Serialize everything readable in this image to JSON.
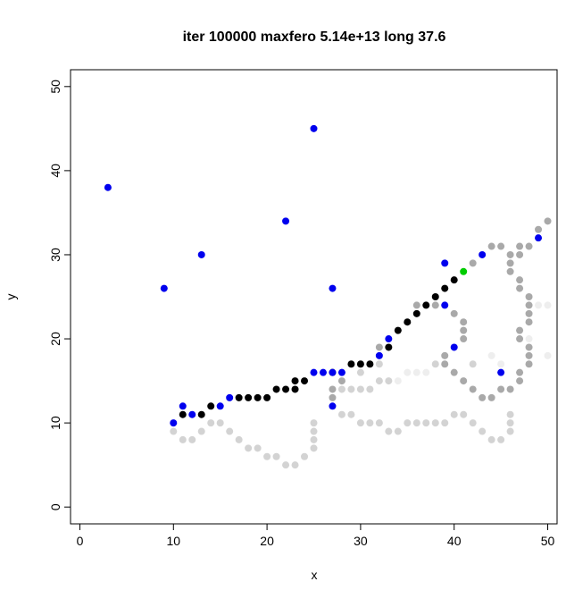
{
  "chart_data": {
    "type": "scatter",
    "title": "iter 100000 maxfero 5.14e+13 long 37.6",
    "x_label": "x",
    "y_label": "y",
    "xlim": [
      -1,
      51
    ],
    "ylim": [
      -2,
      52
    ],
    "xticks": [
      0,
      10,
      20,
      30,
      40,
      50
    ],
    "yticks": [
      0,
      10,
      20,
      30,
      40,
      50
    ],
    "series": [
      {
        "color": "#eeeeee",
        "x": [
          49,
          50,
          50,
          48,
          37,
          36,
          35,
          34,
          44,
          45
        ],
        "values": [
          24,
          24,
          18,
          20,
          16,
          16,
          16,
          15,
          18,
          17
        ]
      },
      {
        "color": "#d3d3d3",
        "x": [
          10,
          11,
          12,
          13,
          14,
          15,
          16,
          17,
          18,
          19,
          20,
          21,
          22,
          23,
          24,
          25,
          25,
          25,
          25,
          28,
          29,
          30,
          31,
          32,
          33,
          34,
          35,
          36,
          37,
          38,
          39,
          40,
          41,
          42,
          43,
          44,
          45,
          46,
          46,
          46,
          28,
          29,
          30,
          31,
          32,
          33,
          32,
          30,
          42,
          38
        ],
        "values": [
          9,
          8,
          8,
          9,
          10,
          10,
          9,
          8,
          7,
          7,
          6,
          6,
          5,
          5,
          6,
          7,
          8,
          9,
          10,
          11,
          11,
          10,
          10,
          10,
          9,
          9,
          10,
          10,
          10,
          10,
          10,
          11,
          11,
          10,
          9,
          8,
          8,
          9,
          10,
          11,
          14,
          14,
          14,
          14,
          15,
          15,
          17,
          16,
          17,
          17
        ]
      },
      {
        "color": "#a9a9a9",
        "x": [
          27,
          27,
          28,
          32,
          36,
          38,
          40,
          41,
          41,
          41,
          39,
          39,
          40,
          41,
          42,
          43,
          44,
          45,
          46,
          47,
          47,
          48,
          48,
          48,
          47,
          47,
          48,
          48,
          48,
          48,
          47,
          47,
          46,
          46,
          46,
          47,
          47,
          48,
          49,
          50,
          42,
          44,
          45
        ],
        "values": [
          14,
          13,
          15,
          19,
          24,
          24,
          23,
          22,
          21,
          20,
          18,
          17,
          16,
          15,
          14,
          13,
          13,
          14,
          14,
          15,
          16,
          17,
          18,
          19,
          20,
          21,
          22,
          23,
          24,
          25,
          26,
          27,
          28,
          29,
          30,
          30,
          31,
          31,
          33,
          34,
          29,
          31,
          31
        ]
      },
      {
        "color": "#000000",
        "x": [
          11,
          13,
          14,
          17,
          18,
          19,
          20,
          21,
          22,
          23,
          23,
          24,
          27,
          29,
          30,
          31,
          33,
          34,
          35,
          36,
          37,
          38,
          39,
          40
        ],
        "values": [
          11,
          11,
          12,
          13,
          13,
          13,
          13,
          14,
          14,
          14,
          15,
          15,
          16,
          17,
          17,
          17,
          19,
          21,
          22,
          23,
          24,
          25,
          26,
          27
        ]
      },
      {
        "color": "#0000ee",
        "x": [
          3,
          9,
          13,
          22,
          25,
          27,
          10,
          11,
          12,
          15,
          16,
          25,
          26,
          27,
          28,
          27,
          32,
          33,
          39,
          39,
          40,
          43,
          45,
          49
        ],
        "values": [
          38,
          26,
          30,
          34,
          45,
          26,
          10,
          12,
          11,
          12,
          13,
          16,
          16,
          16,
          16,
          12,
          18,
          20,
          29,
          24,
          19,
          30,
          16,
          32
        ]
      },
      {
        "color": "#00cc00",
        "x": [
          41
        ],
        "values": [
          28
        ]
      }
    ]
  }
}
